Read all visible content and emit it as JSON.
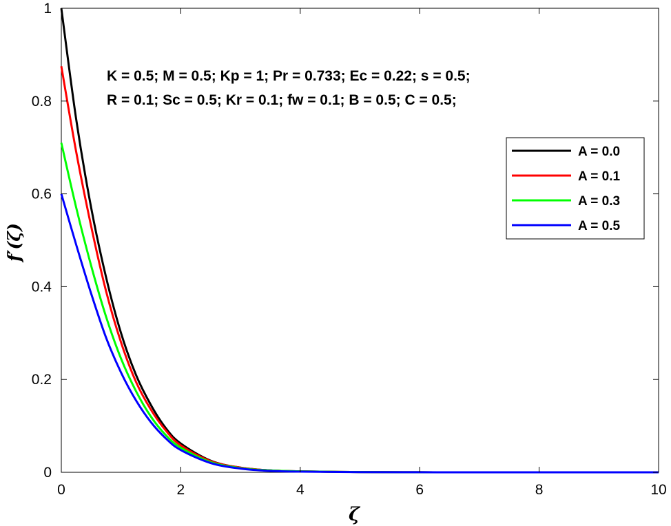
{
  "chart_data": {
    "type": "line",
    "xlabel": "ζ",
    "ylabel": "f′(ζ)",
    "xlim": [
      0,
      10
    ],
    "ylim": [
      0,
      1
    ],
    "xticks": [
      0,
      2,
      4,
      6,
      8,
      10
    ],
    "yticks": [
      0,
      0.2,
      0.4,
      0.6,
      0.8,
      1
    ],
    "xtick_labels": [
      "0",
      "2",
      "4",
      "6",
      "8",
      "10"
    ],
    "ytick_labels": [
      "0",
      "0.2",
      "0.4",
      "0.6",
      "0.8",
      "1"
    ],
    "grid": false,
    "legend_position": "top-right",
    "annotations": [
      "K = 0.5; M = 0.5; Kp = 1; Pr = 0.733; Ec = 0.22; s = 0.5;",
      "R = 0.1;  Sc = 0.5; Kr = 0.1; fw = 0.1; B = 0.5; C = 0.5;"
    ],
    "x": [
      0,
      0.25,
      0.5,
      0.75,
      1,
      1.25,
      1.5,
      1.75,
      2,
      2.5,
      3,
      3.5,
      4,
      5,
      6,
      7,
      8,
      9,
      10
    ],
    "series": [
      {
        "name": "A = 0.0",
        "color": "#000000",
        "values": [
          1.0,
          0.76,
          0.57,
          0.42,
          0.3,
          0.21,
          0.145,
          0.095,
          0.062,
          0.025,
          0.01,
          0.004,
          0.002,
          0.0005,
          0.0001,
          0,
          0,
          0,
          0
        ]
      },
      {
        "name": "A = 0.1",
        "color": "#ff0000",
        "values": [
          0.875,
          0.69,
          0.53,
          0.39,
          0.28,
          0.195,
          0.135,
          0.09,
          0.058,
          0.024,
          0.01,
          0.004,
          0.002,
          0.0005,
          0.0001,
          0,
          0,
          0,
          0
        ]
      },
      {
        "name": "A = 0.3",
        "color": "#00ff00",
        "values": [
          0.71,
          0.57,
          0.445,
          0.335,
          0.245,
          0.175,
          0.12,
          0.08,
          0.053,
          0.022,
          0.009,
          0.004,
          0.002,
          0.0005,
          0.0001,
          0,
          0,
          0,
          0
        ]
      },
      {
        "name": "A = 0.5",
        "color": "#0000ff",
        "values": [
          0.6,
          0.49,
          0.385,
          0.29,
          0.215,
          0.155,
          0.108,
          0.073,
          0.048,
          0.02,
          0.008,
          0.003,
          0.0015,
          0.0004,
          0.0001,
          0,
          0,
          0,
          0
        ]
      }
    ]
  }
}
